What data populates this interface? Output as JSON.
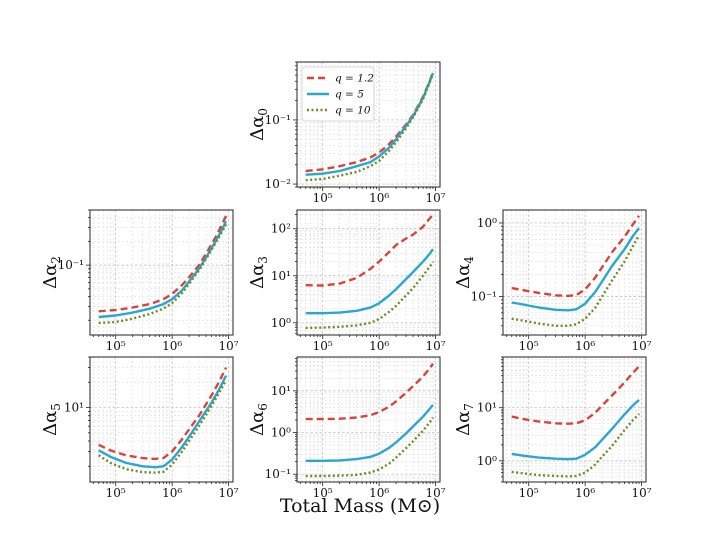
{
  "figure": {
    "xlabel": "Total Mass (M⊙)"
  },
  "legend": [
    {
      "label": "q = 1.2",
      "color": "#d6453a",
      "style": "dashed"
    },
    {
      "label": "q = 5",
      "color": "#2aa7cf",
      "style": "solid"
    },
    {
      "label": "q = 10",
      "color": "#6f8a22",
      "style": "dotted"
    }
  ],
  "chart_data": [
    {
      "type": "line",
      "ylabel": "Δα0",
      "ylabel_base": "Δα",
      "ylabel_sub": "0",
      "xscale": "log",
      "yscale": "log",
      "xlim": [
        35000,
        12000000
      ],
      "ylim": [
        0.009,
        0.8
      ],
      "xticks": [
        {
          "v": 100000,
          "label": "10⁵"
        },
        {
          "v": 1000000,
          "label": "10⁶"
        },
        {
          "v": 10000000,
          "label": "10⁷"
        }
      ],
      "yticks": [
        {
          "v": 0.01,
          "label": "10⁻²"
        },
        {
          "v": 0.1,
          "label": "10⁻¹"
        }
      ],
      "grid": true,
      "legend": "top-left",
      "x": [
        50000,
        100000,
        200000,
        400000,
        700000,
        1000000,
        1500000,
        2000000,
        3000000,
        4000000,
        6000000,
        8000000,
        9000000
      ],
      "series": [
        {
          "name": "q = 1.2",
          "values": [
            0.016,
            0.017,
            0.019,
            0.022,
            0.026,
            0.031,
            0.042,
            0.055,
            0.085,
            0.12,
            0.23,
            0.42,
            0.55
          ]
        },
        {
          "name": "q = 5",
          "values": [
            0.014,
            0.0145,
            0.016,
            0.019,
            0.022,
            0.027,
            0.037,
            0.05,
            0.08,
            0.115,
            0.22,
            0.41,
            0.54
          ]
        },
        {
          "name": "q = 10",
          "values": [
            0.0115,
            0.012,
            0.0135,
            0.0155,
            0.019,
            0.023,
            0.033,
            0.045,
            0.074,
            0.11,
            0.21,
            0.4,
            0.52
          ]
        }
      ]
    },
    {
      "type": "line",
      "ylabel": "Δα2",
      "ylabel_base": "Δα",
      "ylabel_sub": "2",
      "xscale": "log",
      "yscale": "log",
      "xlim": [
        35000,
        12000000
      ],
      "ylim": [
        0.013,
        0.5
      ],
      "xticks": [
        {
          "v": 100000,
          "label": "10⁵"
        },
        {
          "v": 1000000,
          "label": "10⁶"
        },
        {
          "v": 10000000,
          "label": "10⁷"
        }
      ],
      "yticks": [
        {
          "v": 0.1,
          "label": "10⁻¹"
        }
      ],
      "grid": true,
      "x": [
        50000,
        100000,
        200000,
        400000,
        700000,
        1000000,
        1500000,
        2000000,
        3000000,
        4000000,
        6000000,
        8000000,
        9000000
      ],
      "series": [
        {
          "name": "q = 1.2",
          "values": [
            0.026,
            0.027,
            0.029,
            0.032,
            0.037,
            0.043,
            0.056,
            0.07,
            0.1,
            0.14,
            0.23,
            0.35,
            0.42
          ]
        },
        {
          "name": "q = 5",
          "values": [
            0.022,
            0.023,
            0.025,
            0.028,
            0.032,
            0.037,
            0.048,
            0.062,
            0.09,
            0.125,
            0.205,
            0.3,
            0.36
          ]
        },
        {
          "name": "q = 10",
          "values": [
            0.0185,
            0.019,
            0.021,
            0.024,
            0.028,
            0.033,
            0.044,
            0.058,
            0.086,
            0.12,
            0.195,
            0.28,
            0.33
          ]
        }
      ]
    },
    {
      "type": "line",
      "ylabel": "Δα3",
      "ylabel_base": "Δα",
      "ylabel_sub": "3",
      "xscale": "log",
      "yscale": "log",
      "xlim": [
        35000,
        12000000
      ],
      "ylim": [
        0.55,
        250
      ],
      "xticks": [
        {
          "v": 100000,
          "label": "10⁵"
        },
        {
          "v": 1000000,
          "label": "10⁶"
        },
        {
          "v": 10000000,
          "label": "10⁷"
        }
      ],
      "yticks": [
        {
          "v": 1,
          "label": "10⁰"
        },
        {
          "v": 10,
          "label": "10¹"
        },
        {
          "v": 100,
          "label": "10²"
        }
      ],
      "grid": true,
      "x": [
        50000,
        100000,
        200000,
        400000,
        700000,
        1000000,
        1500000,
        2000000,
        3000000,
        4000000,
        6000000,
        8000000,
        9000000
      ],
      "series": [
        {
          "name": "q = 1.2",
          "values": [
            6.3,
            6.2,
            6.8,
            9,
            14,
            20,
            32,
            45,
            62,
            75,
            110,
            170,
            200
          ]
        },
        {
          "name": "q = 5",
          "values": [
            1.6,
            1.6,
            1.65,
            1.8,
            2.1,
            2.6,
            3.8,
            5.2,
            8.5,
            12,
            20,
            30,
            37
          ]
        },
        {
          "name": "q = 10",
          "values": [
            0.78,
            0.79,
            0.82,
            0.88,
            1,
            1.2,
            1.7,
            2.3,
            3.8,
            5.5,
            10,
            16,
            20
          ]
        }
      ]
    },
    {
      "type": "line",
      "ylabel": "Δα4",
      "ylabel_base": "Δα",
      "ylabel_sub": "4",
      "xscale": "log",
      "yscale": "log",
      "xlim": [
        35000,
        12000000
      ],
      "ylim": [
        0.03,
        1.5
      ],
      "xticks": [
        {
          "v": 100000,
          "label": "10⁵"
        },
        {
          "v": 1000000,
          "label": "10⁶"
        },
        {
          "v": 10000000,
          "label": "10⁷"
        }
      ],
      "yticks": [
        {
          "v": 0.1,
          "label": "10⁻¹"
        },
        {
          "v": 1,
          "label": "10⁰"
        }
      ],
      "grid": true,
      "x": [
        50000,
        80000,
        150000,
        300000,
        500000,
        700000,
        1000000,
        1500000,
        2000000,
        3000000,
        5000000,
        7000000,
        9000000
      ],
      "series": [
        {
          "name": "q = 1.2",
          "values": [
            0.13,
            0.122,
            0.112,
            0.104,
            0.102,
            0.105,
            0.125,
            0.18,
            0.25,
            0.4,
            0.65,
            0.95,
            1.25
          ]
        },
        {
          "name": "q = 5",
          "values": [
            0.083,
            0.078,
            0.071,
            0.066,
            0.065,
            0.067,
            0.08,
            0.115,
            0.16,
            0.26,
            0.44,
            0.66,
            0.85
          ]
        },
        {
          "name": "q = 10",
          "values": [
            0.05,
            0.047,
            0.043,
            0.04,
            0.04,
            0.042,
            0.05,
            0.07,
            0.1,
            0.165,
            0.3,
            0.48,
            0.68
          ]
        }
      ]
    },
    {
      "type": "line",
      "ylabel": "Δα5",
      "ylabel_base": "Δα",
      "ylabel_sub": "5",
      "xscale": "log",
      "yscale": "log",
      "xlim": [
        35000,
        12000000
      ],
      "ylim": [
        1.3,
        40
      ],
      "xticks": [
        {
          "v": 100000,
          "label": "10⁵"
        },
        {
          "v": 1000000,
          "label": "10⁶"
        },
        {
          "v": 10000000,
          "label": "10⁷"
        }
      ],
      "yticks": [
        {
          "v": 10,
          "label": "10¹"
        }
      ],
      "grid": true,
      "x": [
        50000,
        80000,
        150000,
        300000,
        500000,
        700000,
        1000000,
        1500000,
        2000000,
        3000000,
        5000000,
        7000000,
        9000000
      ],
      "series": [
        {
          "name": "q = 1.2",
          "values": [
            3.6,
            3.1,
            2.7,
            2.5,
            2.45,
            2.5,
            3,
            4.2,
            5.5,
            8,
            14,
            21,
            30
          ]
        },
        {
          "name": "q = 5",
          "values": [
            3.1,
            2.6,
            2.2,
            2,
            1.95,
            2,
            2.4,
            3.4,
            4.5,
            6.8,
            11.5,
            17,
            24
          ]
        },
        {
          "name": "q = 10",
          "values": [
            2.7,
            2.2,
            1.85,
            1.7,
            1.68,
            1.72,
            2.1,
            3,
            4,
            6,
            10.5,
            15.5,
            21
          ]
        }
      ]
    },
    {
      "type": "line",
      "ylabel": "Δα6",
      "ylabel_base": "Δα",
      "ylabel_sub": "6",
      "xscale": "log",
      "yscale": "log",
      "xlim": [
        35000,
        12000000
      ],
      "ylim": [
        0.065,
        65
      ],
      "xticks": [
        {
          "v": 100000,
          "label": "10⁵"
        },
        {
          "v": 1000000,
          "label": "10⁶"
        },
        {
          "v": 10000000,
          "label": "10⁷"
        }
      ],
      "yticks": [
        {
          "v": 0.1,
          "label": "10⁻¹"
        },
        {
          "v": 1,
          "label": "10⁰"
        },
        {
          "v": 10,
          "label": "10¹"
        }
      ],
      "grid": true,
      "x": [
        50000,
        100000,
        200000,
        400000,
        700000,
        1000000,
        1500000,
        2000000,
        3000000,
        4000000,
        6000000,
        8000000,
        9000000
      ],
      "series": [
        {
          "name": "q = 1.2",
          "values": [
            2.1,
            2.1,
            2.15,
            2.3,
            2.6,
            3.1,
            4.2,
            5.6,
            9,
            13,
            22,
            36,
            45
          ]
        },
        {
          "name": "q = 5",
          "values": [
            0.21,
            0.21,
            0.215,
            0.23,
            0.26,
            0.31,
            0.43,
            0.58,
            0.95,
            1.4,
            2.4,
            3.8,
            4.6
          ]
        },
        {
          "name": "q = 10",
          "values": [
            0.09,
            0.09,
            0.092,
            0.097,
            0.11,
            0.13,
            0.18,
            0.25,
            0.42,
            0.62,
            1.1,
            1.8,
            2.3
          ]
        }
      ]
    },
    {
      "type": "line",
      "ylabel": "Δα7",
      "ylabel_base": "Δα",
      "ylabel_sub": "7",
      "xscale": "log",
      "yscale": "log",
      "xlim": [
        35000,
        12000000
      ],
      "ylim": [
        0.4,
        90
      ],
      "xticks": [
        {
          "v": 100000,
          "label": "10⁵"
        },
        {
          "v": 1000000,
          "label": "10⁶"
        },
        {
          "v": 10000000,
          "label": "10⁷"
        }
      ],
      "yticks": [
        {
          "v": 1,
          "label": "10⁰"
        },
        {
          "v": 10,
          "label": "10¹"
        }
      ],
      "grid": true,
      "x": [
        50000,
        80000,
        150000,
        300000,
        500000,
        700000,
        1000000,
        1500000,
        2000000,
        3000000,
        5000000,
        7000000,
        9000000
      ],
      "series": [
        {
          "name": "q = 1.2",
          "values": [
            6.8,
            6.1,
            5.5,
            5.1,
            5,
            5.1,
            5.8,
            8,
            11,
            17,
            30,
            45,
            60
          ]
        },
        {
          "name": "q = 5",
          "values": [
            1.35,
            1.25,
            1.15,
            1.1,
            1.08,
            1.1,
            1.3,
            1.8,
            2.5,
            4,
            7.5,
            11,
            14
          ]
        },
        {
          "name": "q = 10",
          "values": [
            0.62,
            0.58,
            0.54,
            0.52,
            0.51,
            0.52,
            0.6,
            0.85,
            1.2,
            1.9,
            3.8,
            5.8,
            7.6
          ]
        }
      ]
    }
  ]
}
